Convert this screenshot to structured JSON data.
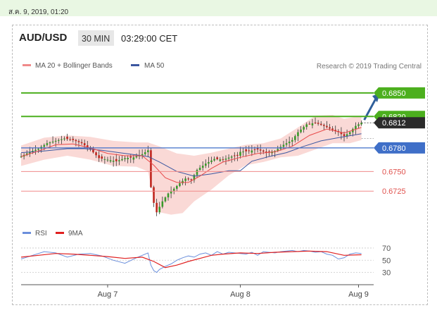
{
  "timestamp": "ส.ค. 9, 2019, 01:20",
  "header": {
    "symbol": "AUD/USD",
    "timeframe": "30 MIN",
    "time": "03:29:00 CET"
  },
  "legend": {
    "ma20": "MA 20 + Bollinger Bands",
    "ma50": "MA 50",
    "credit": "Research © 2019 Trading Central"
  },
  "rsi_legend": {
    "rsi": "RSI",
    "ma9": "9MA"
  },
  "colors": {
    "green": "#4caf1e",
    "blue": "#3f6fc8",
    "red": "#f08a8a",
    "dark": "#2b2b2b",
    "arrow": "#2f5f9a",
    "candle_up": "#3a9a2a",
    "candle_down": "#c0261e",
    "band": "#f9d5d1",
    "ma20": "#e84a4a",
    "ma50": "#3b57a0",
    "rsi_line": "#6b8fdc",
    "rsi_ma": "#e02020"
  },
  "chart_data": [
    {
      "type": "candlestick",
      "title": "AUD/USD",
      "ylim": [
        0.6683,
        0.6875
      ],
      "x_labels": [
        "Aug 7",
        "Aug 8",
        "Aug 9"
      ],
      "x_label_positions": [
        30,
        76,
        117
      ],
      "levels": [
        {
          "value": 0.685,
          "label": "0.6850",
          "style": "resistance",
          "color": "#4caf1e"
        },
        {
          "value": 0.682,
          "label": "0.6820",
          "style": "resistance",
          "color": "#4caf1e"
        },
        {
          "value": 0.6812,
          "label": "0.6812",
          "style": "current",
          "color": "#2b2b2b"
        },
        {
          "value": 0.678,
          "label": "0.6780",
          "style": "pivot",
          "color": "#3f6fc8"
        },
        {
          "value": 0.675,
          "label": "0.6750",
          "style": "support",
          "color": "#f08a8a"
        },
        {
          "value": 0.6725,
          "label": "0.6725",
          "style": "support",
          "color": "#f08a8a"
        }
      ],
      "close_path": [
        [
          0,
          0.6769
        ],
        [
          3,
          0.6775
        ],
        [
          6,
          0.6779
        ],
        [
          9,
          0.6786
        ],
        [
          12,
          0.6789
        ],
        [
          15,
          0.6792
        ],
        [
          18,
          0.679
        ],
        [
          21,
          0.6786
        ],
        [
          24,
          0.6778
        ],
        [
          27,
          0.6767
        ],
        [
          30,
          0.6765
        ],
        [
          33,
          0.6763
        ],
        [
          36,
          0.6767
        ],
        [
          39,
          0.6768
        ],
        [
          42,
          0.6772
        ],
        [
          44,
          0.6777
        ],
        [
          45,
          0.673
        ],
        [
          46,
          0.671
        ],
        [
          47,
          0.6698
        ],
        [
          49,
          0.6712
        ],
        [
          51,
          0.6722
        ],
        [
          53,
          0.6728
        ],
        [
          55,
          0.6735
        ],
        [
          57,
          0.6741
        ],
        [
          59,
          0.6739
        ],
        [
          61,
          0.6752
        ],
        [
          64,
          0.676
        ],
        [
          67,
          0.6766
        ],
        [
          70,
          0.6765
        ],
        [
          73,
          0.6769
        ],
        [
          75,
          0.677
        ],
        [
          76,
          0.6775
        ],
        [
          79,
          0.6776
        ],
        [
          82,
          0.6778
        ],
        [
          85,
          0.6774
        ],
        [
          88,
          0.6776
        ],
        [
          91,
          0.6784
        ],
        [
          94,
          0.679
        ],
        [
          96,
          0.68
        ],
        [
          99,
          0.681
        ],
        [
          102,
          0.6812
        ],
        [
          105,
          0.6808
        ],
        [
          108,
          0.6803
        ],
        [
          110,
          0.68
        ],
        [
          112,
          0.6795
        ],
        [
          114,
          0.68
        ],
        [
          116,
          0.6808
        ],
        [
          118,
          0.6812
        ]
      ],
      "ma20": [
        [
          0,
          0.6769
        ],
        [
          6,
          0.6776
        ],
        [
          12,
          0.6784
        ],
        [
          18,
          0.6785
        ],
        [
          24,
          0.678
        ],
        [
          30,
          0.6773
        ],
        [
          36,
          0.677
        ],
        [
          42,
          0.677
        ],
        [
          46,
          0.6758
        ],
        [
          50,
          0.6742
        ],
        [
          54,
          0.6736
        ],
        [
          58,
          0.6736
        ],
        [
          62,
          0.6744
        ],
        [
          66,
          0.6754
        ],
        [
          70,
          0.6762
        ],
        [
          76,
          0.6768
        ],
        [
          82,
          0.6773
        ],
        [
          88,
          0.6775
        ],
        [
          94,
          0.6782
        ],
        [
          100,
          0.6796
        ],
        [
          106,
          0.6804
        ],
        [
          112,
          0.6799
        ],
        [
          118,
          0.6806
        ]
      ],
      "ma50": [
        [
          0,
          0.6774
        ],
        [
          8,
          0.6776
        ],
        [
          16,
          0.6779
        ],
        [
          22,
          0.6779
        ],
        [
          28,
          0.6777
        ],
        [
          34,
          0.6774
        ],
        [
          40,
          0.6771
        ],
        [
          44,
          0.6769
        ],
        [
          48,
          0.6762
        ],
        [
          54,
          0.675
        ],
        [
          60,
          0.6744
        ],
        [
          66,
          0.6747
        ],
        [
          72,
          0.6751
        ],
        [
          76,
          0.6751
        ],
        [
          80,
          0.6763
        ],
        [
          86,
          0.6769
        ],
        [
          92,
          0.6774
        ],
        [
          98,
          0.6782
        ],
        [
          104,
          0.6789
        ],
        [
          110,
          0.6793
        ],
        [
          118,
          0.6798
        ]
      ],
      "bollinger_upper": [
        [
          0,
          0.6783
        ],
        [
          8,
          0.6793
        ],
        [
          16,
          0.6796
        ],
        [
          24,
          0.6794
        ],
        [
          32,
          0.6789
        ],
        [
          40,
          0.6787
        ],
        [
          44,
          0.6787
        ],
        [
          48,
          0.6782
        ],
        [
          54,
          0.6773
        ],
        [
          60,
          0.677
        ],
        [
          66,
          0.6774
        ],
        [
          72,
          0.6779
        ],
        [
          78,
          0.6784
        ],
        [
          84,
          0.6786
        ],
        [
          90,
          0.6792
        ],
        [
          96,
          0.6806
        ],
        [
          102,
          0.6821
        ],
        [
          108,
          0.6822
        ],
        [
          112,
          0.6817
        ],
        [
          118,
          0.6821
        ]
      ],
      "bollinger_lower": [
        [
          0,
          0.6757
        ],
        [
          8,
          0.6765
        ],
        [
          16,
          0.677
        ],
        [
          24,
          0.6765
        ],
        [
          32,
          0.6757
        ],
        [
          40,
          0.6756
        ],
        [
          44,
          0.675
        ],
        [
          46,
          0.6715
        ],
        [
          48,
          0.6698
        ],
        [
          52,
          0.6695
        ],
        [
          56,
          0.6697
        ],
        [
          60,
          0.6712
        ],
        [
          66,
          0.6727
        ],
        [
          72,
          0.6745
        ],
        [
          78,
          0.6758
        ],
        [
          84,
          0.6762
        ],
        [
          90,
          0.6768
        ],
        [
          96,
          0.677
        ],
        [
          102,
          0.6778
        ],
        [
          108,
          0.6786
        ],
        [
          114,
          0.6786
        ],
        [
          118,
          0.679
        ]
      ],
      "forecast_target": [
        122,
        0.6848
      ],
      "series": [
        {
          "name": "MA 20 + Bollinger Bands"
        },
        {
          "name": "MA 50"
        }
      ]
    },
    {
      "type": "line",
      "title": "RSI",
      "ylim": [
        18,
        78
      ],
      "y_ticks": [
        70,
        50,
        30
      ],
      "series": [
        {
          "name": "RSI",
          "x": [
            0,
            4,
            8,
            12,
            16,
            20,
            24,
            28,
            32,
            36,
            40,
            44,
            45,
            46,
            47,
            48,
            50,
            52,
            54,
            56,
            58,
            60,
            62,
            64,
            66,
            68,
            70,
            72,
            74,
            76,
            78,
            80,
            82,
            84,
            86,
            88,
            90,
            92,
            94,
            96,
            98,
            100,
            102,
            104,
            106,
            108,
            110,
            112,
            114,
            116,
            118
          ],
          "values": [
            52,
            58,
            64,
            62,
            55,
            60,
            61,
            57,
            50,
            45,
            54,
            62,
            42,
            33,
            30,
            35,
            40,
            44,
            50,
            54,
            57,
            55,
            60,
            62,
            58,
            64,
            60,
            63,
            62,
            61,
            60,
            63,
            58,
            64,
            63,
            62,
            64,
            65,
            66,
            64,
            66,
            65,
            63,
            64,
            60,
            58,
            52,
            54,
            60,
            62,
            61
          ]
        },
        {
          "name": "9MA",
          "x": [
            0,
            6,
            12,
            18,
            24,
            30,
            36,
            42,
            46,
            50,
            54,
            58,
            62,
            66,
            70,
            76,
            82,
            88,
            94,
            100,
            106,
            112,
            118
          ],
          "values": [
            55,
            58,
            61,
            60,
            58,
            56,
            53,
            55,
            48,
            38,
            42,
            48,
            53,
            58,
            60,
            62,
            61,
            63,
            64,
            65,
            64,
            58,
            59
          ]
        }
      ]
    }
  ]
}
